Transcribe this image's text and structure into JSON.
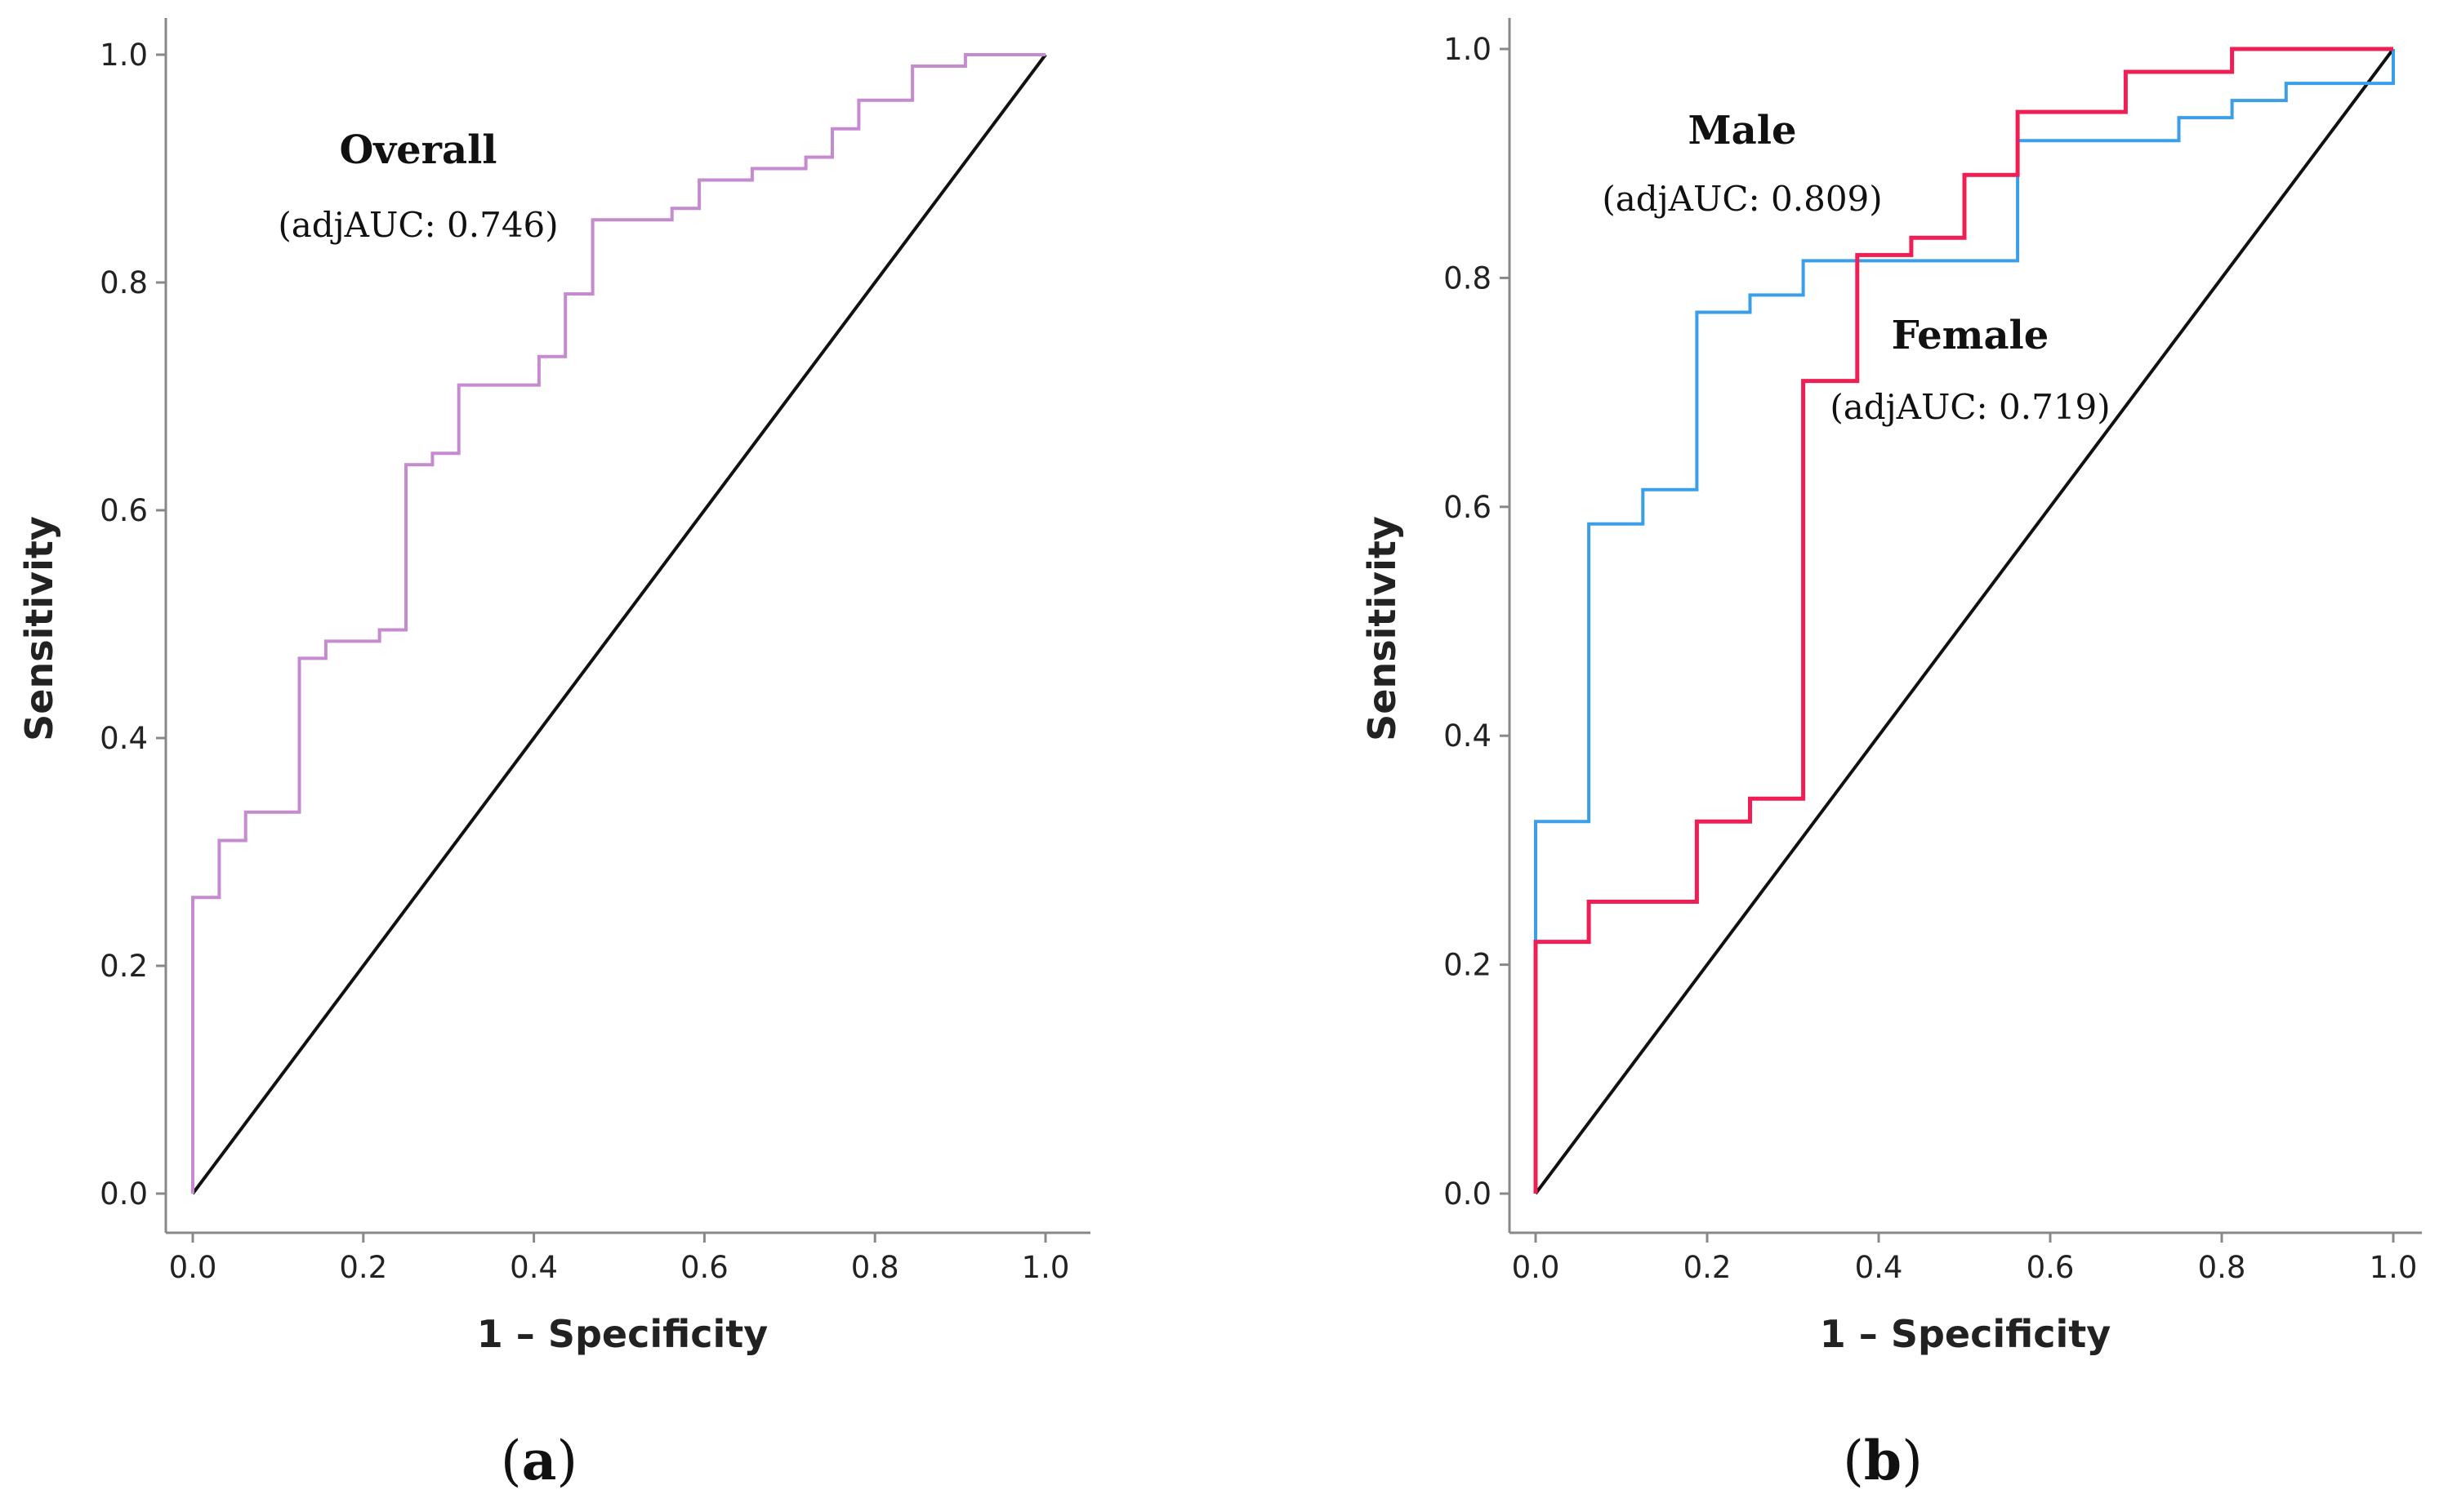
{
  "colors": {
    "overall": "#c58ad0",
    "male": "#3a9ee8",
    "female": "#ef1e55",
    "reference": "#111111",
    "axis": "#888888"
  },
  "chart_data": [
    {
      "type": "line",
      "panel_label": {
        "open": "(",
        "letter": "a",
        "close": ")"
      },
      "xlabel": "1 – Specificity",
      "ylabel": "Sensitivity",
      "xlim": [
        0,
        1
      ],
      "ylim": [
        0,
        1
      ],
      "x_ticks": [
        "0.0",
        "0.2",
        "0.4",
        "0.6",
        "0.8",
        "1.0"
      ],
      "y_ticks": [
        "0.0",
        "0.2",
        "0.4",
        "0.6",
        "0.8",
        "1.0"
      ],
      "reference_line": [
        [
          0,
          0
        ],
        [
          1,
          1
        ]
      ],
      "annotations": [
        {
          "title": "Overall",
          "subtitle": "(adjAUC: 0.746)"
        }
      ],
      "series": [
        {
          "color": "overall",
          "points": [
            [
              0,
              0
            ],
            [
              0,
              0.26
            ],
            [
              0.031,
              0.26
            ],
            [
              0.031,
              0.31
            ],
            [
              0.062,
              0.31
            ],
            [
              0.062,
              0.335
            ],
            [
              0.125,
              0.335
            ],
            [
              0.125,
              0.47
            ],
            [
              0.156,
              0.47
            ],
            [
              0.156,
              0.485
            ],
            [
              0.219,
              0.485
            ],
            [
              0.219,
              0.495
            ],
            [
              0.25,
              0.495
            ],
            [
              0.25,
              0.64
            ],
            [
              0.281,
              0.64
            ],
            [
              0.281,
              0.65
            ],
            [
              0.312,
              0.65
            ],
            [
              0.312,
              0.71
            ],
            [
              0.406,
              0.71
            ],
            [
              0.406,
              0.735
            ],
            [
              0.437,
              0.735
            ],
            [
              0.437,
              0.79
            ],
            [
              0.469,
              0.79
            ],
            [
              0.469,
              0.855
            ],
            [
              0.562,
              0.855
            ],
            [
              0.562,
              0.865
            ],
            [
              0.594,
              0.865
            ],
            [
              0.594,
              0.89
            ],
            [
              0.656,
              0.89
            ],
            [
              0.656,
              0.9
            ],
            [
              0.719,
              0.9
            ],
            [
              0.719,
              0.91
            ],
            [
              0.75,
              0.91
            ],
            [
              0.75,
              0.935
            ],
            [
              0.781,
              0.935
            ],
            [
              0.781,
              0.96
            ],
            [
              0.844,
              0.96
            ],
            [
              0.844,
              0.99
            ],
            [
              0.906,
              0.99
            ],
            [
              0.906,
              1.0
            ],
            [
              1.0,
              1.0
            ]
          ]
        }
      ]
    },
    {
      "type": "line",
      "panel_label": {
        "open": "(",
        "letter": "b",
        "close": ")"
      },
      "xlabel": "1 – Specificity",
      "ylabel": "Sensitivity",
      "xlim": [
        0,
        1
      ],
      "ylim": [
        0,
        1
      ],
      "x_ticks": [
        "0.0",
        "0.2",
        "0.4",
        "0.6",
        "0.8",
        "1.0"
      ],
      "y_ticks": [
        "0.0",
        "0.2",
        "0.4",
        "0.6",
        "0.8",
        "1.0"
      ],
      "reference_line": [
        [
          0,
          0
        ],
        [
          1,
          1
        ]
      ],
      "annotations": [
        {
          "title": "Male",
          "subtitle": "(adjAUC: 0.809)"
        },
        {
          "title": "Female",
          "subtitle": "(adjAUC: 0.719)"
        }
      ],
      "series": [
        {
          "color": "male",
          "points": [
            [
              0,
              0.22
            ],
            [
              0,
              0.325
            ],
            [
              0.062,
              0.325
            ],
            [
              0.062,
              0.585
            ],
            [
              0.125,
              0.585
            ],
            [
              0.125,
              0.615
            ],
            [
              0.188,
              0.615
            ],
            [
              0.188,
              0.77
            ],
            [
              0.25,
              0.77
            ],
            [
              0.25,
              0.785
            ],
            [
              0.312,
              0.785
            ],
            [
              0.312,
              0.815
            ],
            [
              0.562,
              0.815
            ],
            [
              0.562,
              0.92
            ],
            [
              0.75,
              0.92
            ],
            [
              0.75,
              0.94
            ],
            [
              0.812,
              0.94
            ],
            [
              0.812,
              0.955
            ],
            [
              0.875,
              0.955
            ],
            [
              0.875,
              0.97
            ],
            [
              1.0,
              0.97
            ],
            [
              1.0,
              1.0
            ]
          ]
        },
        {
          "color": "female",
          "points": [
            [
              0,
              0
            ],
            [
              0,
              0.22
            ],
            [
              0.062,
              0.22
            ],
            [
              0.062,
              0.255
            ],
            [
              0.188,
              0.255
            ],
            [
              0.188,
              0.325
            ],
            [
              0.25,
              0.325
            ],
            [
              0.25,
              0.345
            ],
            [
              0.312,
              0.345
            ],
            [
              0.312,
              0.71
            ],
            [
              0.375,
              0.71
            ],
            [
              0.375,
              0.82
            ],
            [
              0.438,
              0.82
            ],
            [
              0.438,
              0.835
            ],
            [
              0.5,
              0.835
            ],
            [
              0.5,
              0.89
            ],
            [
              0.562,
              0.89
            ],
            [
              0.562,
              0.945
            ],
            [
              0.688,
              0.945
            ],
            [
              0.688,
              0.98
            ],
            [
              0.812,
              0.98
            ],
            [
              0.812,
              1.0
            ],
            [
              1.0,
              1.0
            ]
          ]
        }
      ]
    }
  ]
}
